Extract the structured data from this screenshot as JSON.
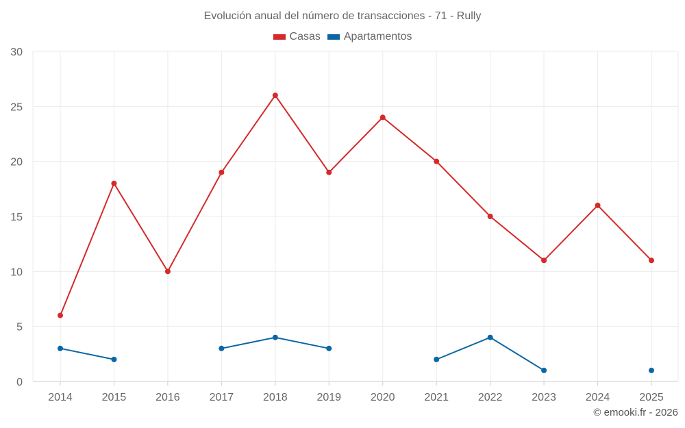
{
  "chart_data": {
    "type": "line",
    "title": "Evolución anual del número de transacciones - 71 - Rully",
    "xlabel": "",
    "ylabel": "",
    "categories": [
      "2014",
      "2015",
      "2016",
      "2017",
      "2018",
      "2019",
      "2020",
      "2021",
      "2022",
      "2023",
      "2024",
      "2025"
    ],
    "ylim": [
      0,
      30
    ],
    "yticks": [
      0,
      5,
      10,
      15,
      20,
      25,
      30
    ],
    "grid": true,
    "legend_position": "top-center",
    "series": [
      {
        "name": "Casas",
        "color": "#d42a2a",
        "values": [
          6,
          18,
          10,
          19,
          26,
          19,
          24,
          20,
          15,
          11,
          16,
          11
        ]
      },
      {
        "name": "Apartamentos",
        "color": "#0a67a3",
        "values": [
          3,
          2,
          null,
          3,
          4,
          3,
          null,
          2,
          4,
          1,
          null,
          1
        ]
      }
    ]
  },
  "credit": "© emooki.fr - 2026"
}
